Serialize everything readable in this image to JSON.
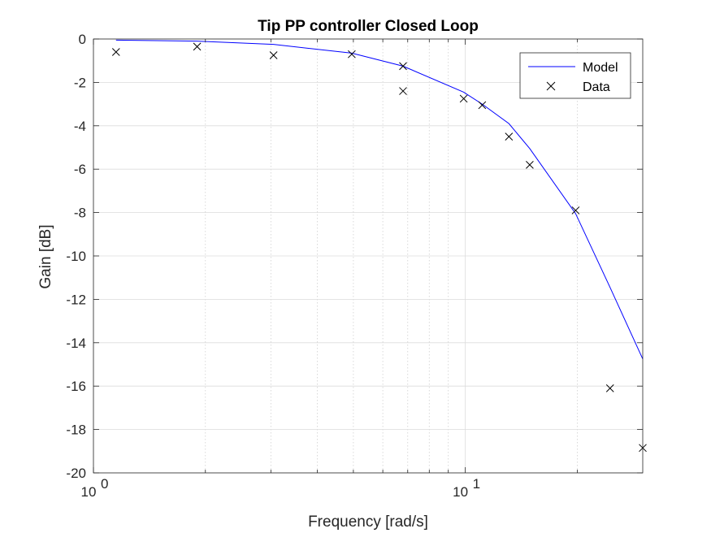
{
  "chart_data": {
    "type": "line",
    "title": "Tip PP controller Closed Loop",
    "xlabel": "Frequency [rad/s]",
    "ylabel": "Gain [dB]",
    "xscale": "log",
    "xlim": [
      1,
      30
    ],
    "ylim": [
      -20,
      0
    ],
    "grid": true,
    "legend_position": "top-right",
    "x_ticks": [
      {
        "value": 1,
        "base": "10",
        "exp": "0"
      },
      {
        "value": 10,
        "base": "10",
        "exp": "1"
      }
    ],
    "y_ticks": [
      0,
      -2,
      -4,
      -6,
      -8,
      -10,
      -12,
      -14,
      -16,
      -18,
      -20
    ],
    "y_tick_labels": [
      "0",
      "-2",
      "-4",
      "-6",
      "-8",
      "-10",
      "-12",
      "-14",
      "-16",
      "-18",
      "-20"
    ],
    "series": [
      {
        "name": "Model",
        "style": "line",
        "color": "#0000ff",
        "x": [
          1.15,
          1.9,
          3.05,
          4.95,
          6.8,
          9.9,
          11.1,
          13.1,
          14.9,
          19.8,
          24.5,
          30
        ],
        "y": [
          -0.05,
          -0.1,
          -0.25,
          -0.65,
          -1.25,
          -2.45,
          -3.0,
          -3.9,
          -5.05,
          -8.05,
          -11.45,
          -14.75
        ]
      },
      {
        "name": "Data",
        "style": "marker",
        "marker": "x",
        "color": "#000000",
        "x": [
          1.15,
          1.9,
          3.05,
          4.95,
          6.8,
          6.8,
          9.9,
          11.1,
          13.1,
          14.9,
          19.8,
          24.5,
          30
        ],
        "y": [
          -0.6,
          -0.35,
          -0.75,
          -0.7,
          -1.25,
          -2.4,
          -2.75,
          -3.05,
          -4.5,
          -5.8,
          -7.9,
          -16.1,
          -18.85
        ]
      }
    ]
  }
}
